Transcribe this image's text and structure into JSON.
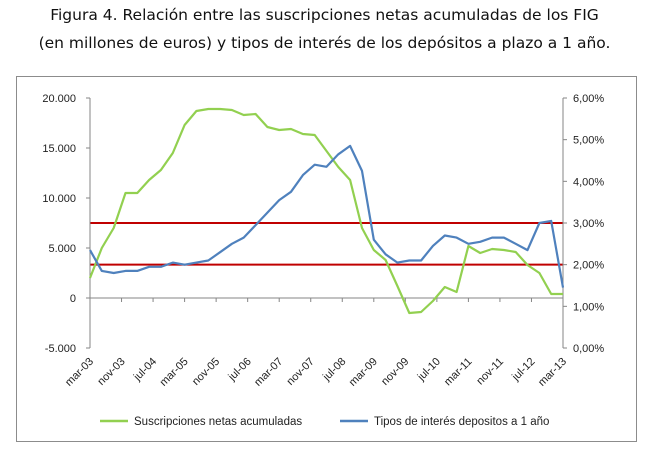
{
  "figure": {
    "title_line1": "Figura 4. Relación entre las suscripciones netas acumuladas de los FIG",
    "title_line2": "(en millones de euros) y tipos de interés de los depósitos a plazo a 1 año."
  },
  "chart_data": {
    "type": "line",
    "title": "Figura 4. Relación entre las suscripciones netas acumuladas de los FIG (en millones de euros) y tipos de interés de los depósitos a plazo a 1 año.",
    "x_tick_labels": [
      "mar-03",
      "nov-03",
      "jul-04",
      "mar-05",
      "nov-05",
      "jul-06",
      "mar-07",
      "nov-07",
      "jul-08",
      "mar-09",
      "nov-09",
      "jul-10",
      "mar-11",
      "nov-11",
      "jul-12",
      "mar-13"
    ],
    "y_left": {
      "lim": [
        -5000,
        20000
      ],
      "ticks": [
        -5000,
        0,
        5000,
        10000,
        15000,
        20000
      ],
      "tick_labels": [
        "-5.000",
        "0",
        "5.000",
        "10.000",
        "15.000",
        "20.000"
      ]
    },
    "y_right": {
      "lim": [
        0,
        6
      ],
      "ticks": [
        0,
        1,
        2,
        3,
        4,
        5,
        6
      ],
      "tick_labels": [
        "0,00%",
        "1,00%",
        "2,00%",
        "3,00%",
        "4,00%",
        "5,00%",
        "6,00%"
      ]
    },
    "grid": false,
    "legend_position": "bottom",
    "series": [
      {
        "name": "Suscripciones netas acumuladas",
        "axis": "left",
        "color": "#92d050",
        "x_step_months": 4,
        "values": [
          2000,
          5000,
          7000,
          10500,
          10500,
          11800,
          12800,
          14500,
          17300,
          18700,
          18900,
          18900,
          18800,
          18300,
          18400,
          17100,
          16800,
          16900,
          16400,
          16300,
          14700,
          13100,
          11800,
          7000,
          4800,
          3800,
          1200,
          -1500,
          -1400,
          -300,
          1100,
          600,
          5200,
          4500,
          4900,
          4800,
          4600,
          3300,
          2500,
          400,
          400
        ]
      },
      {
        "name": "Tipos de interés depositos a 1 año",
        "axis": "right",
        "color": "#4f81bd",
        "x_step_months": 4,
        "values": [
          2.35,
          1.85,
          1.8,
          1.85,
          1.85,
          1.95,
          1.95,
          2.05,
          2.0,
          2.05,
          2.1,
          2.3,
          2.5,
          2.65,
          2.95,
          3.25,
          3.55,
          3.75,
          4.15,
          4.4,
          4.35,
          4.65,
          4.85,
          4.25,
          2.6,
          2.25,
          2.05,
          2.1,
          2.1,
          2.45,
          2.7,
          2.65,
          2.5,
          2.55,
          2.65,
          2.65,
          2.5,
          2.35,
          3.0,
          3.05,
          1.45
        ]
      }
    ],
    "reference_lines": [
      {
        "axis": "right",
        "value": 3.0,
        "color": "#c00000"
      },
      {
        "axis": "right",
        "value": 2.0,
        "color": "#c00000"
      }
    ]
  }
}
